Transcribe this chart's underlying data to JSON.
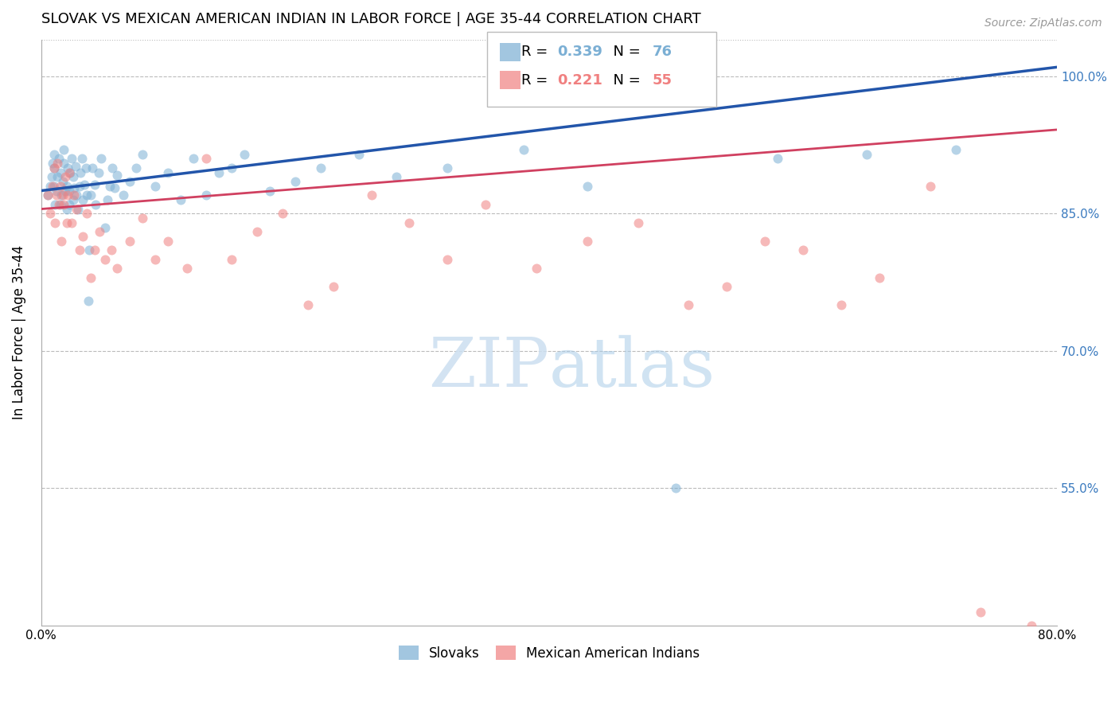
{
  "title": "SLOVAK VS MEXICAN AMERICAN INDIAN IN LABOR FORCE | AGE 35-44 CORRELATION CHART",
  "source": "Source: ZipAtlas.com",
  "ylabel": "In Labor Force | Age 35-44",
  "xlim": [
    0.0,
    0.8
  ],
  "ylim": [
    0.4,
    1.04
  ],
  "xticks": [
    0.0,
    0.1,
    0.2,
    0.3,
    0.4,
    0.5,
    0.6,
    0.7,
    0.8
  ],
  "xticklabels": [
    "0.0%",
    "",
    "",
    "",
    "",
    "",
    "",
    "",
    "80.0%"
  ],
  "yticks": [
    0.55,
    0.7,
    0.85,
    1.0
  ],
  "yticklabels": [
    "55.0%",
    "70.0%",
    "85.0%",
    "100.0%"
  ],
  "right_ytick_color": "#3a7abf",
  "grid_color": "#bbbbbb",
  "background_color": "#ffffff",
  "blue_R": 0.339,
  "blue_N": 76,
  "pink_R": 0.221,
  "pink_N": 55,
  "blue_color": "#7bafd4",
  "pink_color": "#f08080",
  "trend_blue_color": "#2255aa",
  "trend_pink_color": "#d04060",
  "scatter_alpha": 0.55,
  "scatter_size": 75,
  "legend_blue_label": "Slovaks",
  "legend_pink_label": "Mexican American Indians",
  "slovaks_x": [
    0.005,
    0.007,
    0.008,
    0.009,
    0.01,
    0.01,
    0.01,
    0.011,
    0.012,
    0.013,
    0.014,
    0.015,
    0.015,
    0.016,
    0.017,
    0.018,
    0.018,
    0.019,
    0.02,
    0.02,
    0.021,
    0.022,
    0.022,
    0.023,
    0.024,
    0.025,
    0.025,
    0.026,
    0.027,
    0.028,
    0.029,
    0.03,
    0.031,
    0.032,
    0.033,
    0.034,
    0.035,
    0.036,
    0.037,
    0.038,
    0.039,
    0.04,
    0.042,
    0.043,
    0.045,
    0.047,
    0.05,
    0.052,
    0.054,
    0.056,
    0.058,
    0.06,
    0.065,
    0.07,
    0.075,
    0.08,
    0.09,
    0.1,
    0.11,
    0.12,
    0.13,
    0.14,
    0.15,
    0.16,
    0.18,
    0.2,
    0.22,
    0.25,
    0.28,
    0.32,
    0.38,
    0.43,
    0.5,
    0.58,
    0.65,
    0.72
  ],
  "slovaks_y": [
    0.87,
    0.88,
    0.89,
    0.905,
    0.915,
    0.88,
    0.9,
    0.86,
    0.875,
    0.89,
    0.91,
    0.86,
    0.895,
    0.87,
    0.885,
    0.905,
    0.92,
    0.875,
    0.855,
    0.88,
    0.9,
    0.86,
    0.875,
    0.895,
    0.91,
    0.865,
    0.89,
    0.878,
    0.902,
    0.87,
    0.855,
    0.88,
    0.895,
    0.91,
    0.865,
    0.882,
    0.9,
    0.87,
    0.755,
    0.81,
    0.87,
    0.9,
    0.882,
    0.86,
    0.895,
    0.91,
    0.835,
    0.865,
    0.88,
    0.9,
    0.878,
    0.892,
    0.87,
    0.885,
    0.9,
    0.915,
    0.88,
    0.895,
    0.865,
    0.91,
    0.87,
    0.895,
    0.9,
    0.915,
    0.875,
    0.885,
    0.9,
    0.915,
    0.89,
    0.9,
    0.92,
    0.88,
    0.55,
    0.91,
    0.915,
    0.92
  ],
  "mexican_x": [
    0.005,
    0.007,
    0.009,
    0.01,
    0.011,
    0.012,
    0.013,
    0.014,
    0.015,
    0.016,
    0.017,
    0.018,
    0.019,
    0.02,
    0.021,
    0.022,
    0.024,
    0.026,
    0.028,
    0.03,
    0.033,
    0.036,
    0.039,
    0.042,
    0.046,
    0.05,
    0.055,
    0.06,
    0.07,
    0.08,
    0.09,
    0.1,
    0.115,
    0.13,
    0.15,
    0.17,
    0.19,
    0.21,
    0.23,
    0.26,
    0.29,
    0.32,
    0.35,
    0.39,
    0.43,
    0.47,
    0.51,
    0.54,
    0.57,
    0.6,
    0.63,
    0.66,
    0.7,
    0.74,
    0.78
  ],
  "mexican_y": [
    0.87,
    0.85,
    0.88,
    0.9,
    0.84,
    0.87,
    0.905,
    0.86,
    0.88,
    0.82,
    0.87,
    0.86,
    0.89,
    0.84,
    0.87,
    0.895,
    0.84,
    0.87,
    0.855,
    0.81,
    0.825,
    0.85,
    0.78,
    0.81,
    0.83,
    0.8,
    0.81,
    0.79,
    0.82,
    0.845,
    0.8,
    0.82,
    0.79,
    0.91,
    0.8,
    0.83,
    0.85,
    0.75,
    0.77,
    0.87,
    0.84,
    0.8,
    0.86,
    0.79,
    0.82,
    0.84,
    0.75,
    0.77,
    0.82,
    0.81,
    0.75,
    0.78,
    0.88,
    0.415,
    0.4
  ]
}
